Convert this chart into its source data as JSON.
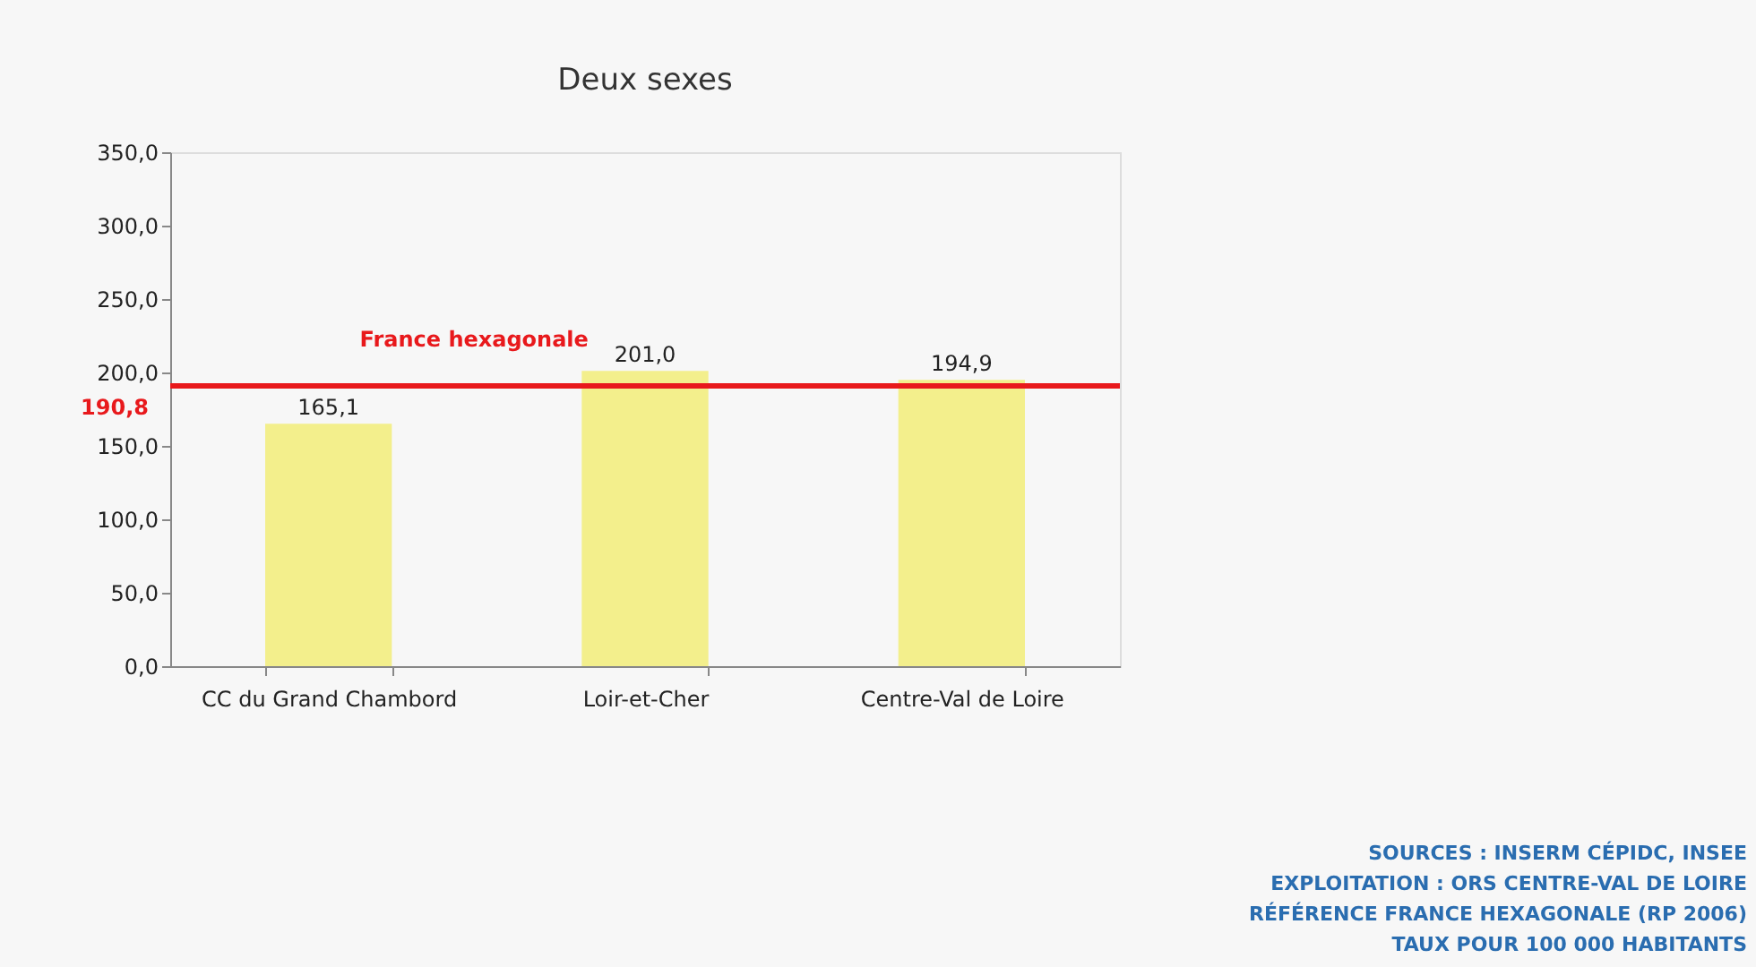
{
  "chart_data": {
    "type": "bar",
    "title": "Deux sexes",
    "categories": [
      "CC du Grand Chambord",
      "Loir-et-Cher",
      "Centre-Val de Loire"
    ],
    "values": [
      165.1,
      201.0,
      194.9
    ],
    "color": "#f3ef8c",
    "value_labels": [
      "165,1",
      "201,0",
      "194,9"
    ],
    "ylim": [
      0,
      350
    ],
    "yticks": [
      {
        "value": 0,
        "label": "0,0"
      },
      {
        "value": 50,
        "label": "50,0"
      },
      {
        "value": 100,
        "label": "100,0"
      },
      {
        "value": 150,
        "label": "150,0"
      },
      {
        "value": 200,
        "label": "200,0"
      },
      {
        "value": 250,
        "label": "250,0"
      },
      {
        "value": 300,
        "label": "300,0"
      },
      {
        "value": 350,
        "label": "350,0"
      }
    ],
    "grid": false,
    "ref_lines": [
      {
        "axis": "y",
        "value": 190.8,
        "label": "France hexagonale",
        "color": "#e8191c"
      }
    ],
    "annotations": [
      "190,8",
      "SOURCES : INSERM CÉPIDC, INSEE",
      "EXPLOITATION : ORS CENTRE-VAL DE LOIRE",
      "RÉFÉRENCE FRANCE HEXAGONALE (RP 2006)",
      "TAUX POUR 100 000 HABITANTS"
    ]
  }
}
